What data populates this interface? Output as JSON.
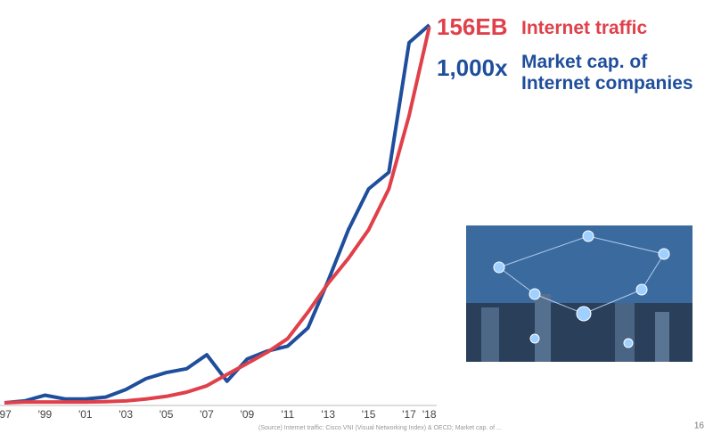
{
  "chart_data": {
    "type": "line",
    "categories": [
      "'97",
      null,
      "'99",
      null,
      "'01",
      null,
      "'03",
      null,
      "'05",
      null,
      "'07",
      null,
      "'09",
      null,
      "'11",
      null,
      "'13",
      null,
      "'15",
      null,
      "'17",
      "'18"
    ],
    "ylim": [
      0,
      100
    ],
    "series": [
      {
        "name": "Internet traffic",
        "end_label": "156EB",
        "color": "#e0404a",
        "values": [
          0,
          0.2,
          0.2,
          0.2,
          0.2,
          0.3,
          0.5,
          1,
          1.7,
          2.8,
          4.5,
          7.5,
          10.4,
          13.4,
          17,
          24,
          31.6,
          38.2,
          45.8,
          56.6,
          76,
          99.5
        ]
      },
      {
        "name": "Market cap. of\nInternet companies",
        "end_label": "1,000x",
        "color": "#1f4e9c",
        "values": [
          0,
          0.5,
          2,
          1,
          1,
          1.5,
          3.5,
          6.4,
          8,
          9,
          12.7,
          5.7,
          11.6,
          13.7,
          15,
          19.8,
          32.3,
          45.8,
          56.6,
          61,
          95.3,
          100
        ]
      }
    ],
    "source": "(Source) Internet traffic: Cisco VNI (Visual Networking Index) & OECD; Market cap. of ...",
    "page_number": "16"
  }
}
